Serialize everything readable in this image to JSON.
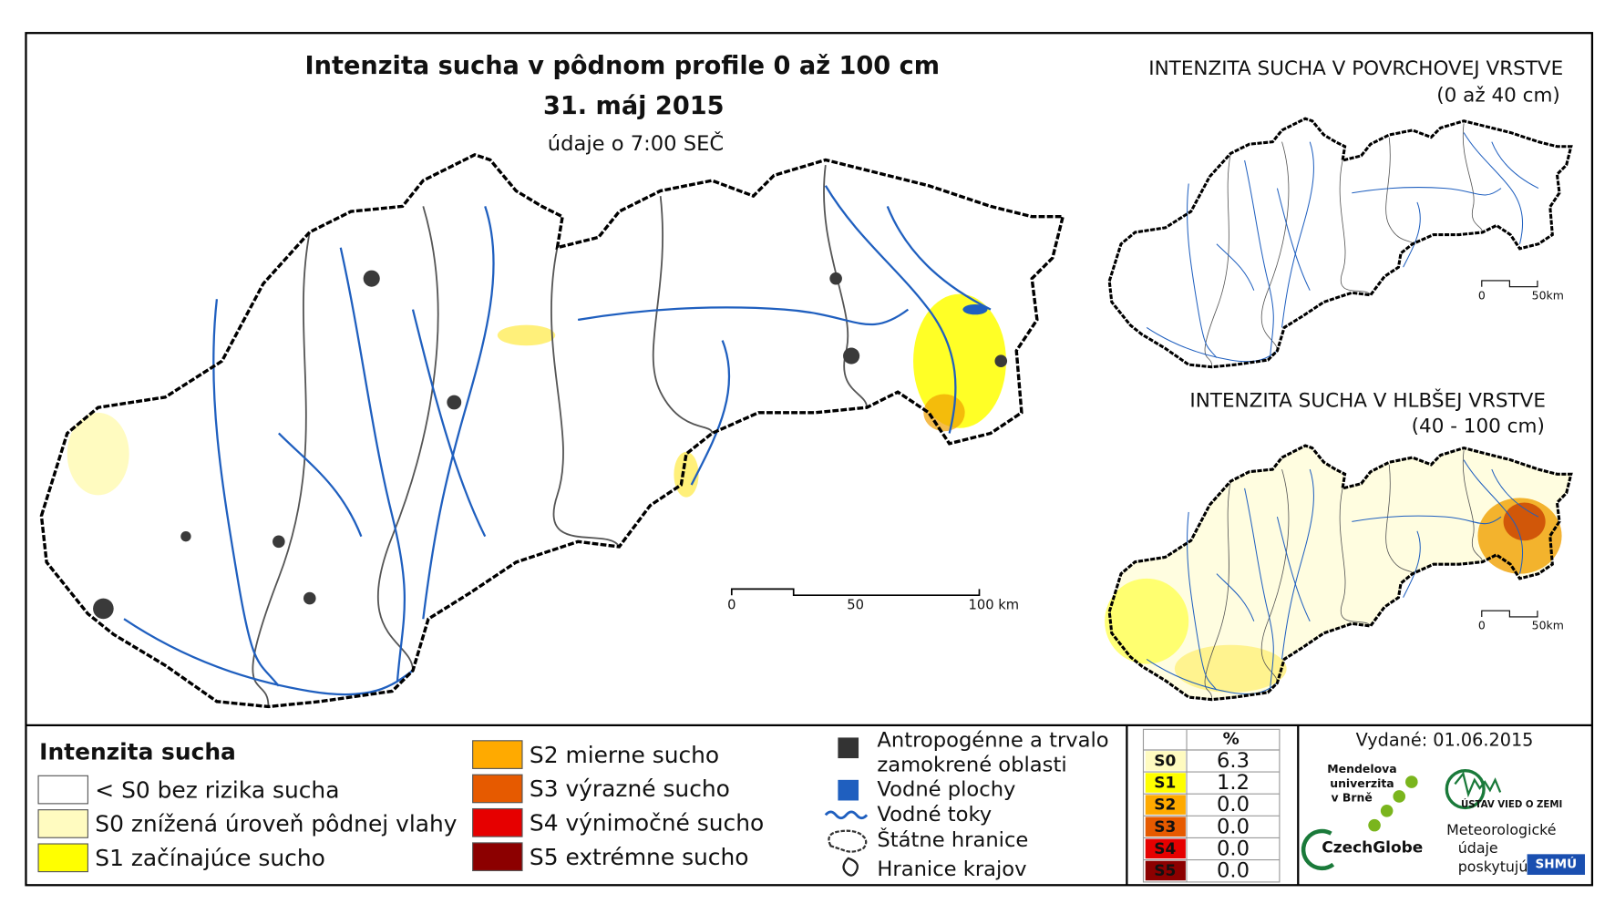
{
  "main_map": {
    "title": "Intenzita sucha v pôdnom profile 0 až 100 cm",
    "date": "31. máj 2015",
    "subtitle": "údaje o 7:00 SEČ",
    "scale_labels": [
      "0",
      "50",
      "100 km"
    ]
  },
  "inset_top": {
    "title": "INTENZITA SUCHA V POVRCHOVEJ VRSTVE",
    "subtitle": "(0 až 40 cm)",
    "scale_labels": [
      "0",
      "50km"
    ]
  },
  "inset_bottom": {
    "title": "INTENZITA SUCHA V HLBŠEJ VRSTVE",
    "subtitle": "(40 - 100 cm)",
    "scale_labels": [
      "0",
      "50km"
    ]
  },
  "legend": {
    "title": "Intenzita sucha",
    "items": [
      {
        "label": "< S0 bez rizika sucha",
        "color": "#ffffff"
      },
      {
        "label": "S0 znížená úroveň pôdnej vlahy",
        "color": "#fffbc0"
      },
      {
        "label": "S1 začínajúce sucho",
        "color": "#ffff00"
      },
      {
        "label": "S2 mierne sucho",
        "color": "#ffaa00"
      },
      {
        "label": "S3 výrazné sucho",
        "color": "#e65a00"
      },
      {
        "label": "S4 výnimočné sucho",
        "color": "#e60000"
      },
      {
        "label": "S5 extrémne sucho",
        "color": "#8c0000"
      }
    ]
  },
  "symbols": {
    "anthropogenic": [
      "Antropogénne a trvalo",
      "zamokrené oblasti"
    ],
    "water_bodies": "Vodné plochy",
    "streams": "Vodné toky",
    "state_border": "Štátne hranice",
    "region_border": "Hranice krajov"
  },
  "table": {
    "header": "%",
    "rows": [
      {
        "class": "S0",
        "value": "6.3",
        "color": "#fffbc0"
      },
      {
        "class": "S1",
        "value": "1.2",
        "color": "#ffff00"
      },
      {
        "class": "S2",
        "value": "0.0",
        "color": "#ffaa00"
      },
      {
        "class": "S3",
        "value": "0.0",
        "color": "#e65a00"
      },
      {
        "class": "S4",
        "value": "0.0",
        "color": "#e60000"
      },
      {
        "class": "S5",
        "value": "0.0",
        "color": "#8c0000"
      }
    ]
  },
  "issued": "Vydané: 01.06.2015",
  "logos": {
    "mendel": [
      "Mendelova",
      "univerzita",
      "v Brně"
    ],
    "czechglobe": "CzechGlobe",
    "uvz": "ÚSTAV VIED O ZEMI",
    "provider": [
      "Meteorologické",
      "údaje",
      "poskytujú:"
    ],
    "shmu": "SHMÚ"
  }
}
